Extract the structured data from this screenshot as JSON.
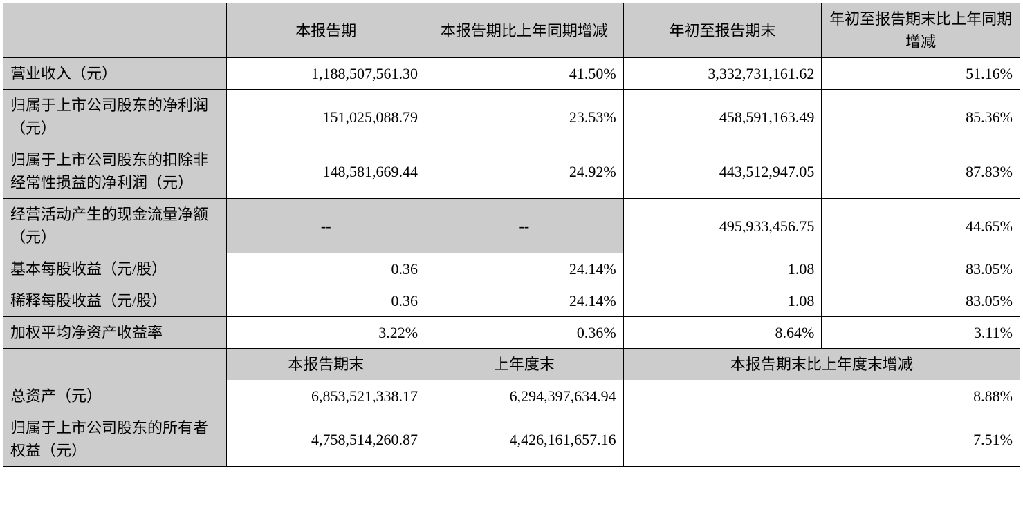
{
  "table": {
    "colors": {
      "header_bg": "#cccccc",
      "label_bg": "#cccccc",
      "data_bg": "#ffffff",
      "border": "#000000",
      "text": "#000000"
    },
    "font_size": 22,
    "header1": {
      "col1": "",
      "col2": "本报告期",
      "col3": "本报告期比上年同期增减",
      "col4": "年初至报告期末",
      "col5": "年初至报告期末比上年同期增减"
    },
    "rows1": [
      {
        "label": "营业收入（元）",
        "c2": "1,188,507,561.30",
        "c3": "41.50%",
        "c4": "3,332,731,161.62",
        "c5": "51.16%"
      },
      {
        "label": "归属于上市公司股东的净利润（元）",
        "c2": "151,025,088.79",
        "c3": "23.53%",
        "c4": "458,591,163.49",
        "c5": "85.36%"
      },
      {
        "label": "归属于上市公司股东的扣除非经常性损益的净利润（元）",
        "c2": "148,581,669.44",
        "c3": "24.92%",
        "c4": "443,512,947.05",
        "c5": "87.83%"
      },
      {
        "label": "经营活动产生的现金流量净额（元）",
        "c2": "--",
        "c2_dash": true,
        "c3": "--",
        "c3_dash": true,
        "c4": "495,933,456.75",
        "c5": "44.65%"
      },
      {
        "label": "基本每股收益（元/股）",
        "c2": "0.36",
        "c3": "24.14%",
        "c4": "1.08",
        "c5": "83.05%"
      },
      {
        "label": "稀释每股收益（元/股）",
        "c2": "0.36",
        "c3": "24.14%",
        "c4": "1.08",
        "c5": "83.05%"
      },
      {
        "label": "加权平均净资产收益率",
        "c2": "3.22%",
        "c3": "0.36%",
        "c4": "8.64%",
        "c5": "3.11%"
      }
    ],
    "header2": {
      "col1": "",
      "col2": "本报告期末",
      "col3": "上年度末",
      "col45": "本报告期末比上年度末增减"
    },
    "rows2": [
      {
        "label": "总资产（元）",
        "c2": "6,853,521,338.17",
        "c3": "6,294,397,634.94",
        "c45": "8.88%"
      },
      {
        "label": "归属于上市公司股东的所有者权益（元）",
        "c2": "4,758,514,260.87",
        "c3": "4,426,161,657.16",
        "c45": "7.51%"
      }
    ]
  }
}
